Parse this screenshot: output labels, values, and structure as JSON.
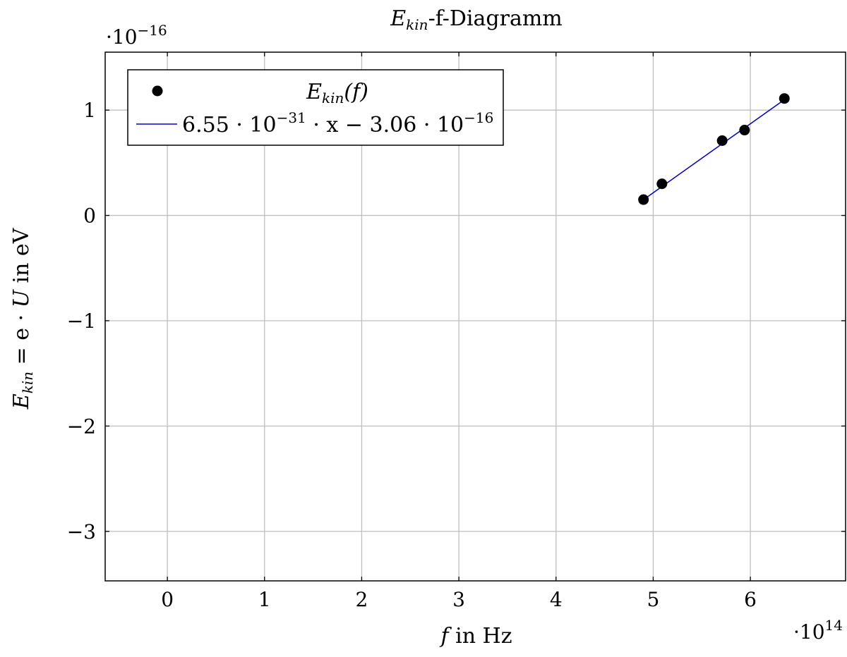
{
  "chart_data": {
    "type": "scatter",
    "title": {
      "main": "E",
      "sub": "kin",
      "rest": "-f-Diagramm"
    },
    "xlabel": "f  in Hz",
    "ylabel": "E_kin = e · U in eV",
    "x_multiplier": "·10^14",
    "y_multiplier": "·10^−16",
    "xlim": [
      -0.64,
      6.98
    ],
    "ylim": [
      -3.47,
      1.55
    ],
    "x_scale": 100000000000000.0,
    "y_scale": 1e-16,
    "grid": true,
    "legend_position": "top-left",
    "x_ticks": [
      0,
      1,
      2,
      3,
      4,
      5,
      6
    ],
    "x_tick_labels": [
      "0",
      "1",
      "2",
      "3",
      "4",
      "5",
      "6"
    ],
    "y_ticks": [
      1,
      0,
      -1,
      -2,
      -3
    ],
    "y_tick_labels": [
      "1",
      "0",
      "−1",
      "−2",
      "−3"
    ],
    "series": [
      {
        "name": "E_kin(f)",
        "kind": "scatter",
        "color": "#000000",
        "x": [
          490000000000000.0,
          509000000000000.0,
          571000000000000.0,
          594000000000000.0,
          635000000000000.0
        ],
        "y": [
          1.5e-17,
          3e-17,
          7.1e-17,
          8.1e-17,
          1.11e-16
        ]
      },
      {
        "name": "6.55 · 10^−31 · x − 3.06 · 10^−16",
        "kind": "line",
        "color": "#0000cc",
        "slope": 6.55e-31,
        "intercept": -3.06e-16,
        "x_range": [
          490000000000000.0,
          635000000000000.0
        ]
      }
    ],
    "legend": {
      "entry1": {
        "main": "E",
        "sub": "kin",
        "rest": "(f)"
      },
      "entry2": {
        "a": "6.55 · 10",
        "e1": "−31",
        "b": " · x − 3.06 · 10",
        "e2": "−16"
      }
    },
    "multipliers": {
      "x": {
        "base": "·10",
        "exp": "14"
      },
      "y": {
        "base": "·10",
        "exp": "−16"
      }
    },
    "axis_labels": {
      "x": {
        "var": "f",
        "rest": "  in Hz"
      },
      "y": {
        "main": "E",
        "sub": "kin",
        "rest1": " = e · ",
        "var": "U",
        "rest2": " in eV"
      }
    }
  }
}
